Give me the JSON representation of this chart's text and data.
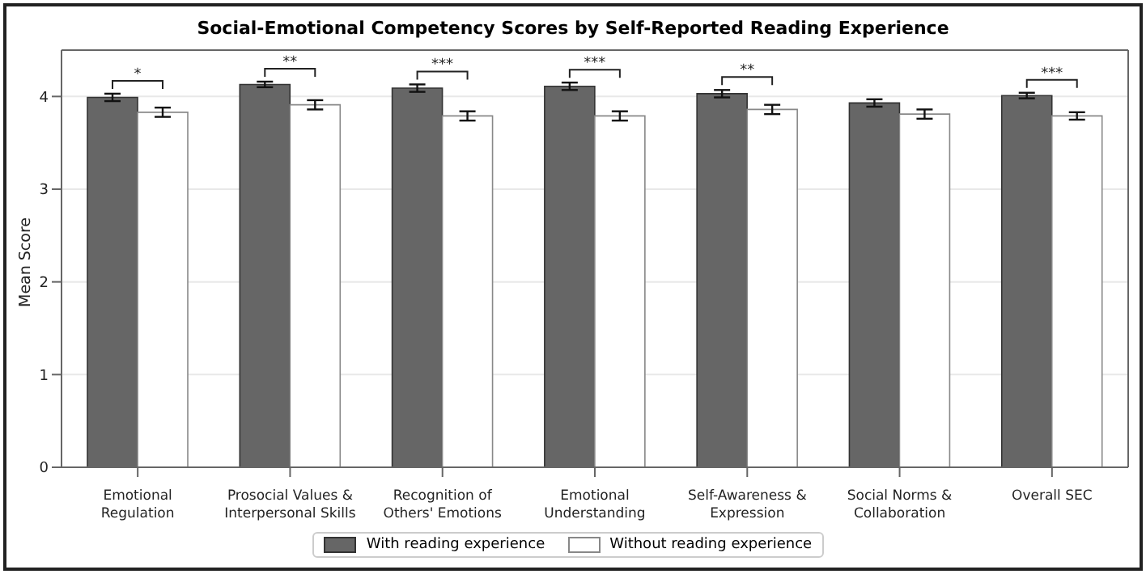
{
  "chart_data": {
    "type": "bar",
    "title": "Social-Emotional Competency Scores by Self-Reported Reading Experience",
    "ylabel": "Mean Score",
    "categories": [
      "Emotional\nRegulation",
      "Prosocial Values &\nInterpersonal Skills",
      "Recognition of\nOthers' Emotions",
      "Emotional\nUnderstanding",
      "Self-Awareness &\nExpression",
      "Social Norms &\nCollaboration",
      "Overall SEC"
    ],
    "series": [
      {
        "name": "With reading experience",
        "color": "#666666",
        "values": [
          3.99,
          4.13,
          4.09,
          4.11,
          4.03,
          3.93,
          4.01
        ],
        "errors": [
          0.04,
          0.03,
          0.04,
          0.04,
          0.04,
          0.04,
          0.03
        ]
      },
      {
        "name": "Without reading experience",
        "color": "#ffffff",
        "values": [
          3.83,
          3.91,
          3.79,
          3.79,
          3.86,
          3.81,
          3.79
        ],
        "errors": [
          0.05,
          0.05,
          0.05,
          0.05,
          0.05,
          0.05,
          0.04
        ]
      }
    ],
    "ylim": [
      0,
      4.5
    ],
    "yticks": [
      0,
      1,
      2,
      3,
      4
    ],
    "grid": "y",
    "legend": "bottom",
    "annotations": [
      "*",
      "**",
      "***",
      "***",
      "**",
      null,
      "***"
    ]
  }
}
